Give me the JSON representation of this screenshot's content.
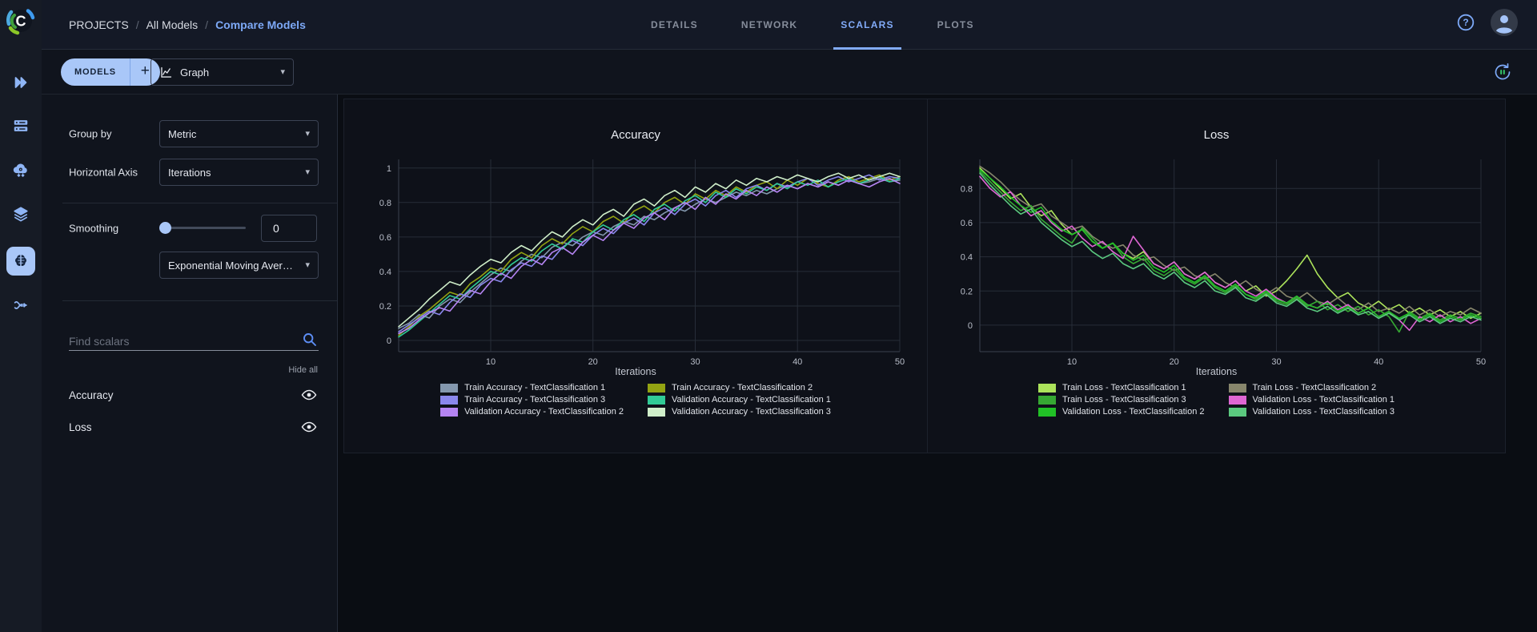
{
  "app": {
    "name": "ClearML"
  },
  "header": {
    "breadcrumb": {
      "root": "PROJECTS",
      "parent": "All Models",
      "current": "Compare Models",
      "separator": "/"
    },
    "tabs": [
      {
        "label": "DETAILS",
        "active": false
      },
      {
        "label": "NETWORK",
        "active": false
      },
      {
        "label": "SCALARS",
        "active": true
      },
      {
        "label": "PLOTS",
        "active": false
      }
    ]
  },
  "toolbar": {
    "models_button": "MODELS",
    "add_button": "+",
    "view_dropdown": "Graph"
  },
  "side_panel": {
    "group_by_label": "Group by",
    "group_by_value": "Metric",
    "horizontal_axis_label": "Horizontal Axis",
    "horizontal_axis_value": "Iterations",
    "smoothing_label": "Smoothing",
    "smoothing_value": "0",
    "smoothing_method": "Exponential Moving Average",
    "search_placeholder": "Find scalars",
    "hide_all_label": "Hide all",
    "metrics": [
      {
        "label": "Accuracy"
      },
      {
        "label": "Loss"
      }
    ]
  },
  "icons": {
    "caret": "▾",
    "plus": "+",
    "help": "?"
  },
  "colors": {
    "accent_blue": "#7da9f7",
    "pill_blue": "#a9c7f8",
    "panel_bg": "#10141d",
    "header_bg": "#141926",
    "card_bg": "#0e1119",
    "grid_line": "#272d38",
    "axis_line": "#3b414e",
    "axis_text": "#b9bec9"
  },
  "chart_data": [
    {
      "type": "line",
      "title": "Accuracy",
      "xlabel": "Iterations",
      "x_start": 1,
      "x_end": 50,
      "xticks": [
        10,
        20,
        30,
        40,
        50
      ],
      "yticks": [
        0,
        0.2,
        0.4,
        0.6,
        0.8,
        1
      ],
      "ylim": [
        -0.065,
        1.05
      ],
      "grid": true,
      "legend_position": "bottom",
      "series": [
        {
          "name": "Train Accuracy - TextClassification 1",
          "color": "#8498ae",
          "values": [
            0.07,
            0.1,
            0.15,
            0.13,
            0.2,
            0.24,
            0.22,
            0.28,
            0.33,
            0.38,
            0.42,
            0.4,
            0.46,
            0.5,
            0.48,
            0.54,
            0.57,
            0.55,
            0.6,
            0.63,
            0.61,
            0.66,
            0.69,
            0.67,
            0.72,
            0.7,
            0.74,
            0.77,
            0.75,
            0.79,
            0.82,
            0.8,
            0.83,
            0.86,
            0.84,
            0.87,
            0.85,
            0.88,
            0.9,
            0.88,
            0.91,
            0.89,
            0.92,
            0.9,
            0.93,
            0.91,
            0.92,
            0.94,
            0.92,
            0.93
          ]
        },
        {
          "name": "Train Accuracy - TextClassification 2",
          "color": "#93a312",
          "values": [
            0.03,
            0.08,
            0.14,
            0.18,
            0.23,
            0.28,
            0.26,
            0.33,
            0.37,
            0.42,
            0.4,
            0.47,
            0.51,
            0.48,
            0.55,
            0.59,
            0.56,
            0.62,
            0.66,
            0.63,
            0.69,
            0.72,
            0.68,
            0.75,
            0.78,
            0.74,
            0.8,
            0.83,
            0.79,
            0.85,
            0.82,
            0.87,
            0.84,
            0.89,
            0.86,
            0.9,
            0.92,
            0.88,
            0.93,
            0.9,
            0.94,
            0.91,
            0.89,
            0.93,
            0.95,
            0.92,
            0.94,
            0.96,
            0.93,
            0.95
          ]
        },
        {
          "name": "Train Accuracy - TextClassification 3",
          "color": "#8a87ec",
          "values": [
            0.05,
            0.09,
            0.13,
            0.17,
            0.15,
            0.22,
            0.27,
            0.25,
            0.32,
            0.36,
            0.34,
            0.41,
            0.45,
            0.43,
            0.49,
            0.47,
            0.54,
            0.58,
            0.55,
            0.61,
            0.65,
            0.62,
            0.68,
            0.71,
            0.67,
            0.74,
            0.77,
            0.73,
            0.79,
            0.82,
            0.78,
            0.84,
            0.87,
            0.83,
            0.88,
            0.9,
            0.87,
            0.91,
            0.89,
            0.92,
            0.94,
            0.9,
            0.93,
            0.95,
            0.92,
            0.94,
            0.96,
            0.93,
            0.95,
            0.94
          ]
        },
        {
          "name": "Validation Accuracy - TextClassification 1",
          "color": "#31cb96",
          "values": [
            0.02,
            0.06,
            0.11,
            0.16,
            0.21,
            0.26,
            0.24,
            0.3,
            0.35,
            0.4,
            0.38,
            0.44,
            0.48,
            0.46,
            0.52,
            0.56,
            0.53,
            0.59,
            0.57,
            0.63,
            0.67,
            0.64,
            0.7,
            0.73,
            0.69,
            0.76,
            0.79,
            0.75,
            0.81,
            0.84,
            0.8,
            0.86,
            0.83,
            0.88,
            0.85,
            0.89,
            0.87,
            0.91,
            0.88,
            0.92,
            0.9,
            0.93,
            0.89,
            0.92,
            0.94,
            0.91,
            0.93,
            0.95,
            0.92,
            0.94
          ]
        },
        {
          "name": "Validation Accuracy - TextClassification 2",
          "color": "#b584f2",
          "values": [
            0.04,
            0.07,
            0.12,
            0.16,
            0.19,
            0.17,
            0.24,
            0.29,
            0.27,
            0.34,
            0.39,
            0.36,
            0.43,
            0.47,
            0.44,
            0.51,
            0.54,
            0.5,
            0.57,
            0.61,
            0.58,
            0.64,
            0.68,
            0.65,
            0.71,
            0.74,
            0.7,
            0.77,
            0.8,
            0.76,
            0.83,
            0.79,
            0.85,
            0.82,
            0.87,
            0.84,
            0.89,
            0.86,
            0.9,
            0.88,
            0.91,
            0.89,
            0.92,
            0.9,
            0.93,
            0.91,
            0.89,
            0.92,
            0.94,
            0.91
          ]
        },
        {
          "name": "Validation Accuracy - TextClassification 3",
          "color": "#cfeec9",
          "values": [
            0.08,
            0.13,
            0.18,
            0.24,
            0.29,
            0.34,
            0.32,
            0.38,
            0.43,
            0.47,
            0.45,
            0.51,
            0.55,
            0.52,
            0.58,
            0.63,
            0.6,
            0.66,
            0.7,
            0.67,
            0.73,
            0.76,
            0.72,
            0.79,
            0.82,
            0.78,
            0.84,
            0.87,
            0.83,
            0.89,
            0.86,
            0.91,
            0.88,
            0.93,
            0.9,
            0.94,
            0.92,
            0.95,
            0.93,
            0.96,
            0.94,
            0.92,
            0.95,
            0.97,
            0.94,
            0.96,
            0.93,
            0.95,
            0.97,
            0.95
          ]
        }
      ]
    },
    {
      "type": "line",
      "title": "Loss",
      "xlabel": "Iterations",
      "x_start": 1,
      "x_end": 50,
      "xticks": [
        10,
        20,
        30,
        40,
        50
      ],
      "yticks": [
        0,
        0.2,
        0.4,
        0.6,
        0.8
      ],
      "ylim": [
        -0.155,
        0.97
      ],
      "grid": true,
      "legend_position": "bottom",
      "series": [
        {
          "name": "Train Loss - TextClassification 1",
          "color": "#ace35b",
          "values": [
            0.92,
            0.86,
            0.8,
            0.74,
            0.77,
            0.69,
            0.64,
            0.67,
            0.59,
            0.53,
            0.56,
            0.49,
            0.45,
            0.48,
            0.42,
            0.39,
            0.43,
            0.36,
            0.33,
            0.37,
            0.3,
            0.27,
            0.31,
            0.25,
            0.22,
            0.26,
            0.2,
            0.23,
            0.17,
            0.2,
            0.26,
            0.33,
            0.41,
            0.3,
            0.22,
            0.16,
            0.19,
            0.13,
            0.1,
            0.14,
            0.09,
            0.12,
            0.07,
            0.1,
            0.06,
            0.09,
            0.05,
            0.08,
            0.04,
            0.07
          ]
        },
        {
          "name": "Train Loss - TextClassification 2",
          "color": "#87866c",
          "values": [
            0.93,
            0.89,
            0.84,
            0.78,
            0.73,
            0.69,
            0.71,
            0.64,
            0.6,
            0.56,
            0.58,
            0.52,
            0.48,
            0.45,
            0.47,
            0.41,
            0.38,
            0.4,
            0.35,
            0.32,
            0.34,
            0.29,
            0.27,
            0.3,
            0.25,
            0.22,
            0.26,
            0.21,
            0.18,
            0.22,
            0.17,
            0.15,
            0.19,
            0.14,
            0.12,
            0.16,
            0.11,
            0.09,
            0.13,
            0.08,
            0.1,
            0.07,
            0.11,
            0.06,
            0.09,
            0.05,
            0.08,
            0.06,
            0.1,
            0.07
          ]
        },
        {
          "name": "Train Loss - TextClassification 3",
          "color": "#36a833",
          "values": [
            0.9,
            0.84,
            0.78,
            0.72,
            0.67,
            0.7,
            0.62,
            0.57,
            0.52,
            0.48,
            0.57,
            0.51,
            0.45,
            0.48,
            0.4,
            0.36,
            0.39,
            0.32,
            0.29,
            0.33,
            0.27,
            0.24,
            0.28,
            0.22,
            0.19,
            0.23,
            0.18,
            0.15,
            0.19,
            0.14,
            0.12,
            0.16,
            0.11,
            0.14,
            0.09,
            0.12,
            0.08,
            0.11,
            0.06,
            0.09,
            0.05,
            -0.04,
            0.08,
            0.04,
            0.07,
            0.03,
            0.06,
            0.04,
            0.07,
            0.05
          ]
        },
        {
          "name": "Validation Loss - TextClassification 1",
          "color": "#de66d3",
          "values": [
            0.87,
            0.8,
            0.75,
            0.78,
            0.7,
            0.64,
            0.67,
            0.6,
            0.55,
            0.58,
            0.51,
            0.46,
            0.49,
            0.43,
            0.39,
            0.52,
            0.44,
            0.36,
            0.33,
            0.37,
            0.3,
            0.27,
            0.31,
            0.25,
            0.22,
            0.26,
            0.2,
            0.17,
            0.21,
            0.16,
            0.13,
            0.17,
            0.12,
            0.1,
            0.14,
            0.09,
            0.12,
            0.07,
            0.1,
            0.05,
            0.08,
            0.03,
            -0.03,
            0.05,
            0.02,
            0.06,
            0.02,
            0.05,
            0.01,
            0.04
          ]
        },
        {
          "name": "Validation Loss - TextClassification 2",
          "color": "#21c126",
          "values": [
            0.91,
            0.86,
            0.81,
            0.75,
            0.7,
            0.66,
            0.69,
            0.61,
            0.56,
            0.53,
            0.56,
            0.49,
            0.45,
            0.48,
            0.42,
            0.38,
            0.41,
            0.34,
            0.31,
            0.35,
            0.28,
            0.25,
            0.29,
            0.23,
            0.2,
            0.24,
            0.18,
            0.16,
            0.2,
            0.15,
            0.13,
            0.17,
            0.12,
            0.1,
            0.13,
            0.08,
            0.11,
            0.07,
            0.1,
            0.05,
            0.08,
            0.04,
            0.07,
            0.03,
            0.06,
            0.02,
            0.05,
            0.03,
            0.06,
            0.04
          ]
        },
        {
          "name": "Validation Loss - TextClassification 3",
          "color": "#5bc97f",
          "values": [
            0.89,
            0.82,
            0.76,
            0.7,
            0.65,
            0.68,
            0.6,
            0.55,
            0.5,
            0.46,
            0.49,
            0.43,
            0.39,
            0.42,
            0.36,
            0.33,
            0.36,
            0.3,
            0.27,
            0.31,
            0.25,
            0.22,
            0.26,
            0.2,
            0.18,
            0.22,
            0.16,
            0.14,
            0.18,
            0.13,
            0.11,
            0.15,
            0.1,
            0.08,
            0.11,
            0.07,
            0.1,
            0.06,
            0.08,
            0.04,
            0.07,
            0.03,
            0.06,
            0.02,
            0.05,
            0.01,
            0.04,
            0.02,
            0.05,
            0.03
          ]
        }
      ]
    }
  ]
}
